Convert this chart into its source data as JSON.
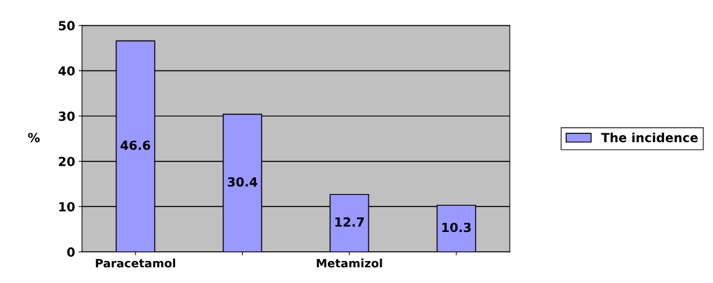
{
  "chart_data": {
    "type": "bar",
    "categories": [
      "Paracetamol",
      null,
      "Metamizol",
      null
    ],
    "series": [
      {
        "name": "The incidence",
        "color": "#9999ff",
        "values": [
          46.6,
          30.4,
          12.7,
          10.3
        ]
      }
    ],
    "ylabel": "%",
    "ylim": [
      0,
      50
    ],
    "yticks": [
      0,
      10,
      20,
      30,
      40,
      50
    ],
    "grid": "y",
    "legend": "right",
    "data_labels": true
  }
}
